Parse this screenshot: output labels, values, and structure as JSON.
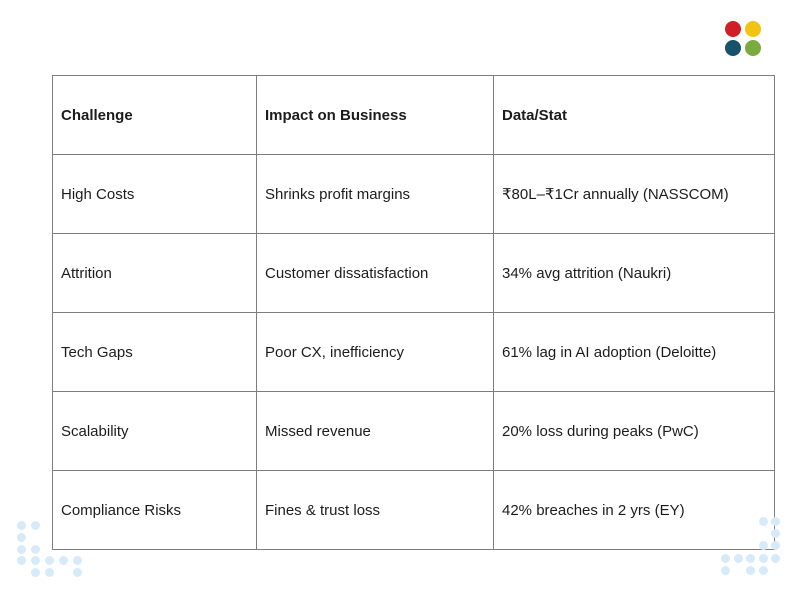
{
  "logo": {
    "colors": [
      "#d01f27",
      "#f2c411",
      "#17516a",
      "#7baa3e"
    ]
  },
  "table": {
    "headers": [
      "Challenge",
      "Impact on Business",
      "Data/Stat"
    ],
    "rows": [
      [
        "High Costs",
        "Shrinks profit margins",
        "₹80L–₹1Cr annually (NASSCOM)"
      ],
      [
        "Attrition",
        "Customer dissatisfaction",
        "34% avg attrition (Naukri)"
      ],
      [
        "Tech Gaps",
        "Poor CX, inefficiency",
        "61% lag in AI adoption (Deloitte)"
      ],
      [
        "Scalability",
        "Missed revenue",
        "20% loss during peaks (PwC)"
      ],
      [
        "Compliance Risks",
        "Fines & trust loss",
        "42% breaches in 2 yrs (EY)"
      ]
    ]
  },
  "decor": {
    "dot_color": "#d7eaf8"
  }
}
